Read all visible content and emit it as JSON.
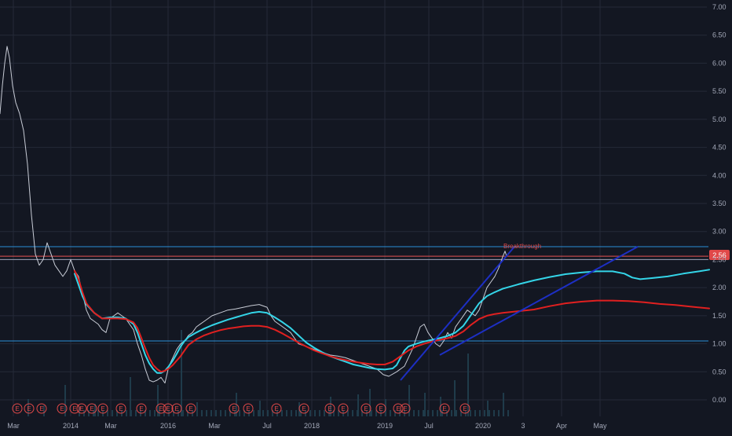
{
  "chart_data": {
    "type": "line",
    "title": "",
    "xlabel": "",
    "ylabel": "",
    "ylim": [
      -0.2,
      7.0
    ],
    "y_ticks": [
      "7.00",
      "6.50",
      "6.00",
      "5.50",
      "5.00",
      "4.50",
      "4.00",
      "3.50",
      "3.00",
      "2.50",
      "2.00",
      "1.50",
      "1.00",
      "0.50",
      "0.00"
    ],
    "x_ticks": [
      "Mar",
      "2014",
      "Mar",
      "2016",
      "Mar",
      "Jul",
      "2018",
      "2019",
      "Jul",
      "2020",
      "3",
      "Apr",
      "May"
    ],
    "price_label": "2.56",
    "annotation": "Breakthrough",
    "horizontal_levels": [
      {
        "value": 2.73,
        "color": "#2a8fd6"
      },
      {
        "value": 2.56,
        "color": "#e55353"
      },
      {
        "value": 2.5,
        "color": "#9aa0b5"
      },
      {
        "value": 1.05,
        "color": "#2a8fd6"
      }
    ],
    "series": [
      {
        "role": "price",
        "color": "#c8ccd6",
        "points": [
          [
            0,
            5.1
          ],
          [
            3,
            5.6
          ],
          [
            6,
            6.0
          ],
          [
            9,
            6.3
          ],
          [
            12,
            6.1
          ],
          [
            16,
            5.6
          ],
          [
            20,
            5.3
          ],
          [
            25,
            5.1
          ],
          [
            30,
            4.8
          ],
          [
            35,
            4.2
          ],
          [
            40,
            3.3
          ],
          [
            45,
            2.6
          ],
          [
            50,
            2.4
          ],
          [
            55,
            2.5
          ],
          [
            60,
            2.8
          ],
          [
            65,
            2.6
          ],
          [
            70,
            2.4
          ],
          [
            75,
            2.3
          ],
          [
            80,
            2.2
          ],
          [
            85,
            2.3
          ],
          [
            90,
            2.5
          ],
          [
            95,
            2.3
          ],
          [
            100,
            2.2
          ],
          [
            105,
            1.9
          ],
          [
            110,
            1.6
          ],
          [
            115,
            1.45
          ],
          [
            120,
            1.4
          ],
          [
            125,
            1.35
          ],
          [
            130,
            1.25
          ],
          [
            135,
            1.2
          ],
          [
            140,
            1.45
          ],
          [
            145,
            1.5
          ],
          [
            150,
            1.55
          ],
          [
            155,
            1.5
          ],
          [
            160,
            1.45
          ],
          [
            165,
            1.35
          ],
          [
            170,
            1.25
          ],
          [
            175,
            1.0
          ],
          [
            180,
            0.8
          ],
          [
            185,
            0.55
          ],
          [
            190,
            0.35
          ],
          [
            195,
            0.32
          ],
          [
            200,
            0.35
          ],
          [
            205,
            0.4
          ],
          [
            210,
            0.3
          ],
          [
            215,
            0.6
          ],
          [
            220,
            0.75
          ],
          [
            225,
            0.9
          ],
          [
            230,
            1.0
          ],
          [
            235,
            1.05
          ],
          [
            240,
            1.15
          ],
          [
            245,
            1.2
          ],
          [
            250,
            1.3
          ],
          [
            260,
            1.4
          ],
          [
            270,
            1.5
          ],
          [
            280,
            1.55
          ],
          [
            290,
            1.6
          ],
          [
            300,
            1.62
          ],
          [
            310,
            1.65
          ],
          [
            320,
            1.68
          ],
          [
            330,
            1.7
          ],
          [
            340,
            1.65
          ],
          [
            345,
            1.5
          ],
          [
            350,
            1.4
          ],
          [
            360,
            1.3
          ],
          [
            370,
            1.2
          ],
          [
            380,
            1.0
          ],
          [
            390,
            0.95
          ],
          [
            400,
            0.9
          ],
          [
            410,
            0.85
          ],
          [
            420,
            0.8
          ],
          [
            430,
            0.78
          ],
          [
            440,
            0.75
          ],
          [
            450,
            0.7
          ],
          [
            460,
            0.65
          ],
          [
            470,
            0.6
          ],
          [
            480,
            0.55
          ],
          [
            488,
            0.45
          ],
          [
            495,
            0.42
          ],
          [
            505,
            0.5
          ],
          [
            515,
            0.6
          ],
          [
            525,
            0.9
          ],
          [
            530,
            1.1
          ],
          [
            535,
            1.3
          ],
          [
            540,
            1.35
          ],
          [
            545,
            1.2
          ],
          [
            550,
            1.1
          ],
          [
            555,
            1.0
          ],
          [
            560,
            0.95
          ],
          [
            565,
            1.05
          ],
          [
            570,
            1.2
          ],
          [
            575,
            1.1
          ],
          [
            580,
            1.3
          ],
          [
            585,
            1.4
          ],
          [
            590,
            1.5
          ],
          [
            595,
            1.6
          ],
          [
            600,
            1.55
          ],
          [
            605,
            1.5
          ],
          [
            610,
            1.6
          ],
          [
            615,
            1.8
          ],
          [
            620,
            2.0
          ],
          [
            625,
            2.1
          ],
          [
            630,
            2.2
          ],
          [
            635,
            2.35
          ],
          [
            640,
            2.55
          ],
          [
            643,
            2.65
          ],
          [
            645,
            2.56
          ]
        ]
      },
      {
        "role": "ma-fast",
        "color": "#34d5e8",
        "points": [
          [
            95,
            2.25
          ],
          [
            100,
            2.05
          ],
          [
            105,
            1.85
          ],
          [
            110,
            1.7
          ],
          [
            120,
            1.55
          ],
          [
            130,
            1.45
          ],
          [
            140,
            1.47
          ],
          [
            150,
            1.47
          ],
          [
            160,
            1.45
          ],
          [
            170,
            1.35
          ],
          [
            175,
            1.2
          ],
          [
            180,
            1.0
          ],
          [
            185,
            0.8
          ],
          [
            190,
            0.65
          ],
          [
            195,
            0.55
          ],
          [
            200,
            0.48
          ],
          [
            205,
            0.48
          ],
          [
            210,
            0.52
          ],
          [
            215,
            0.6
          ],
          [
            220,
            0.7
          ],
          [
            225,
            0.82
          ],
          [
            230,
            0.95
          ],
          [
            235,
            1.05
          ],
          [
            240,
            1.12
          ],
          [
            250,
            1.2
          ],
          [
            260,
            1.27
          ],
          [
            270,
            1.33
          ],
          [
            280,
            1.38
          ],
          [
            290,
            1.43
          ],
          [
            300,
            1.47
          ],
          [
            310,
            1.51
          ],
          [
            320,
            1.55
          ],
          [
            330,
            1.57
          ],
          [
            340,
            1.55
          ],
          [
            350,
            1.47
          ],
          [
            360,
            1.38
          ],
          [
            370,
            1.28
          ],
          [
            380,
            1.15
          ],
          [
            390,
            1.02
          ],
          [
            400,
            0.93
          ],
          [
            410,
            0.85
          ],
          [
            420,
            0.78
          ],
          [
            430,
            0.73
          ],
          [
            440,
            0.68
          ],
          [
            450,
            0.63
          ],
          [
            460,
            0.6
          ],
          [
            470,
            0.57
          ],
          [
            480,
            0.55
          ],
          [
            490,
            0.54
          ],
          [
            500,
            0.56
          ],
          [
            505,
            0.62
          ],
          [
            510,
            0.75
          ],
          [
            515,
            0.88
          ],
          [
            520,
            0.95
          ],
          [
            530,
            1.0
          ],
          [
            540,
            1.04
          ],
          [
            550,
            1.07
          ],
          [
            560,
            1.1
          ],
          [
            570,
            1.14
          ],
          [
            580,
            1.2
          ],
          [
            590,
            1.32
          ],
          [
            600,
            1.52
          ],
          [
            610,
            1.72
          ],
          [
            620,
            1.85
          ],
          [
            630,
            1.92
          ],
          [
            640,
            1.98
          ],
          [
            660,
            2.06
          ],
          [
            680,
            2.13
          ],
          [
            700,
            2.19
          ],
          [
            720,
            2.24
          ],
          [
            740,
            2.27
          ],
          [
            760,
            2.29
          ],
          [
            780,
            2.29
          ],
          [
            795,
            2.25
          ],
          [
            805,
            2.18
          ],
          [
            815,
            2.15
          ],
          [
            830,
            2.17
          ],
          [
            850,
            2.2
          ],
          [
            870,
            2.25
          ],
          [
            890,
            2.29
          ],
          [
            903,
            2.32
          ]
        ]
      },
      {
        "role": "ma-slow",
        "color": "#e02020",
        "points": [
          [
            95,
            2.3
          ],
          [
            100,
            2.15
          ],
          [
            105,
            1.92
          ],
          [
            110,
            1.72
          ],
          [
            120,
            1.55
          ],
          [
            130,
            1.45
          ],
          [
            140,
            1.45
          ],
          [
            150,
            1.45
          ],
          [
            160,
            1.44
          ],
          [
            170,
            1.38
          ],
          [
            175,
            1.28
          ],
          [
            180,
            1.1
          ],
          [
            185,
            0.92
          ],
          [
            190,
            0.75
          ],
          [
            195,
            0.62
          ],
          [
            200,
            0.55
          ],
          [
            205,
            0.5
          ],
          [
            210,
            0.52
          ],
          [
            215,
            0.56
          ],
          [
            220,
            0.62
          ],
          [
            225,
            0.7
          ],
          [
            230,
            0.78
          ],
          [
            235,
            0.88
          ],
          [
            240,
            0.98
          ],
          [
            250,
            1.08
          ],
          [
            260,
            1.15
          ],
          [
            270,
            1.2
          ],
          [
            280,
            1.24
          ],
          [
            290,
            1.27
          ],
          [
            300,
            1.29
          ],
          [
            310,
            1.31
          ],
          [
            320,
            1.32
          ],
          [
            330,
            1.32
          ],
          [
            340,
            1.3
          ],
          [
            350,
            1.25
          ],
          [
            360,
            1.18
          ],
          [
            370,
            1.1
          ],
          [
            380,
            1.02
          ],
          [
            390,
            0.95
          ],
          [
            400,
            0.88
          ],
          [
            410,
            0.83
          ],
          [
            420,
            0.78
          ],
          [
            430,
            0.74
          ],
          [
            440,
            0.71
          ],
          [
            450,
            0.68
          ],
          [
            460,
            0.66
          ],
          [
            470,
            0.64
          ],
          [
            480,
            0.63
          ],
          [
            490,
            0.63
          ],
          [
            500,
            0.68
          ],
          [
            510,
            0.78
          ],
          [
            520,
            0.88
          ],
          [
            530,
            0.95
          ],
          [
            540,
            1.0
          ],
          [
            550,
            1.04
          ],
          [
            560,
            1.07
          ],
          [
            570,
            1.1
          ],
          [
            580,
            1.14
          ],
          [
            590,
            1.22
          ],
          [
            600,
            1.34
          ],
          [
            610,
            1.44
          ],
          [
            620,
            1.5
          ],
          [
            630,
            1.53
          ],
          [
            640,
            1.55
          ],
          [
            660,
            1.58
          ],
          [
            680,
            1.61
          ],
          [
            700,
            1.67
          ],
          [
            720,
            1.72
          ],
          [
            740,
            1.75
          ],
          [
            760,
            1.77
          ],
          [
            780,
            1.77
          ],
          [
            800,
            1.76
          ],
          [
            820,
            1.74
          ],
          [
            840,
            1.71
          ],
          [
            860,
            1.69
          ],
          [
            880,
            1.66
          ],
          [
            903,
            1.63
          ]
        ]
      }
    ],
    "trendlines": [
      {
        "color": "#1d2fc4",
        "points": [
          [
            510,
            0.35
          ],
          [
            655,
            2.73
          ]
        ]
      },
      {
        "color": "#1d2fc4",
        "points": [
          [
            560,
            0.8
          ],
          [
            812,
            2.73
          ]
        ]
      }
    ],
    "earnings_markers": [
      "E",
      "E",
      "E",
      "E",
      "E",
      "E",
      "E",
      "E",
      "E",
      "E",
      "E",
      "E",
      "E",
      "E",
      "E",
      "E",
      "E",
      "E",
      "E",
      "E",
      "E",
      "E",
      "E",
      "E",
      "E",
      "E",
      "E"
    ]
  }
}
